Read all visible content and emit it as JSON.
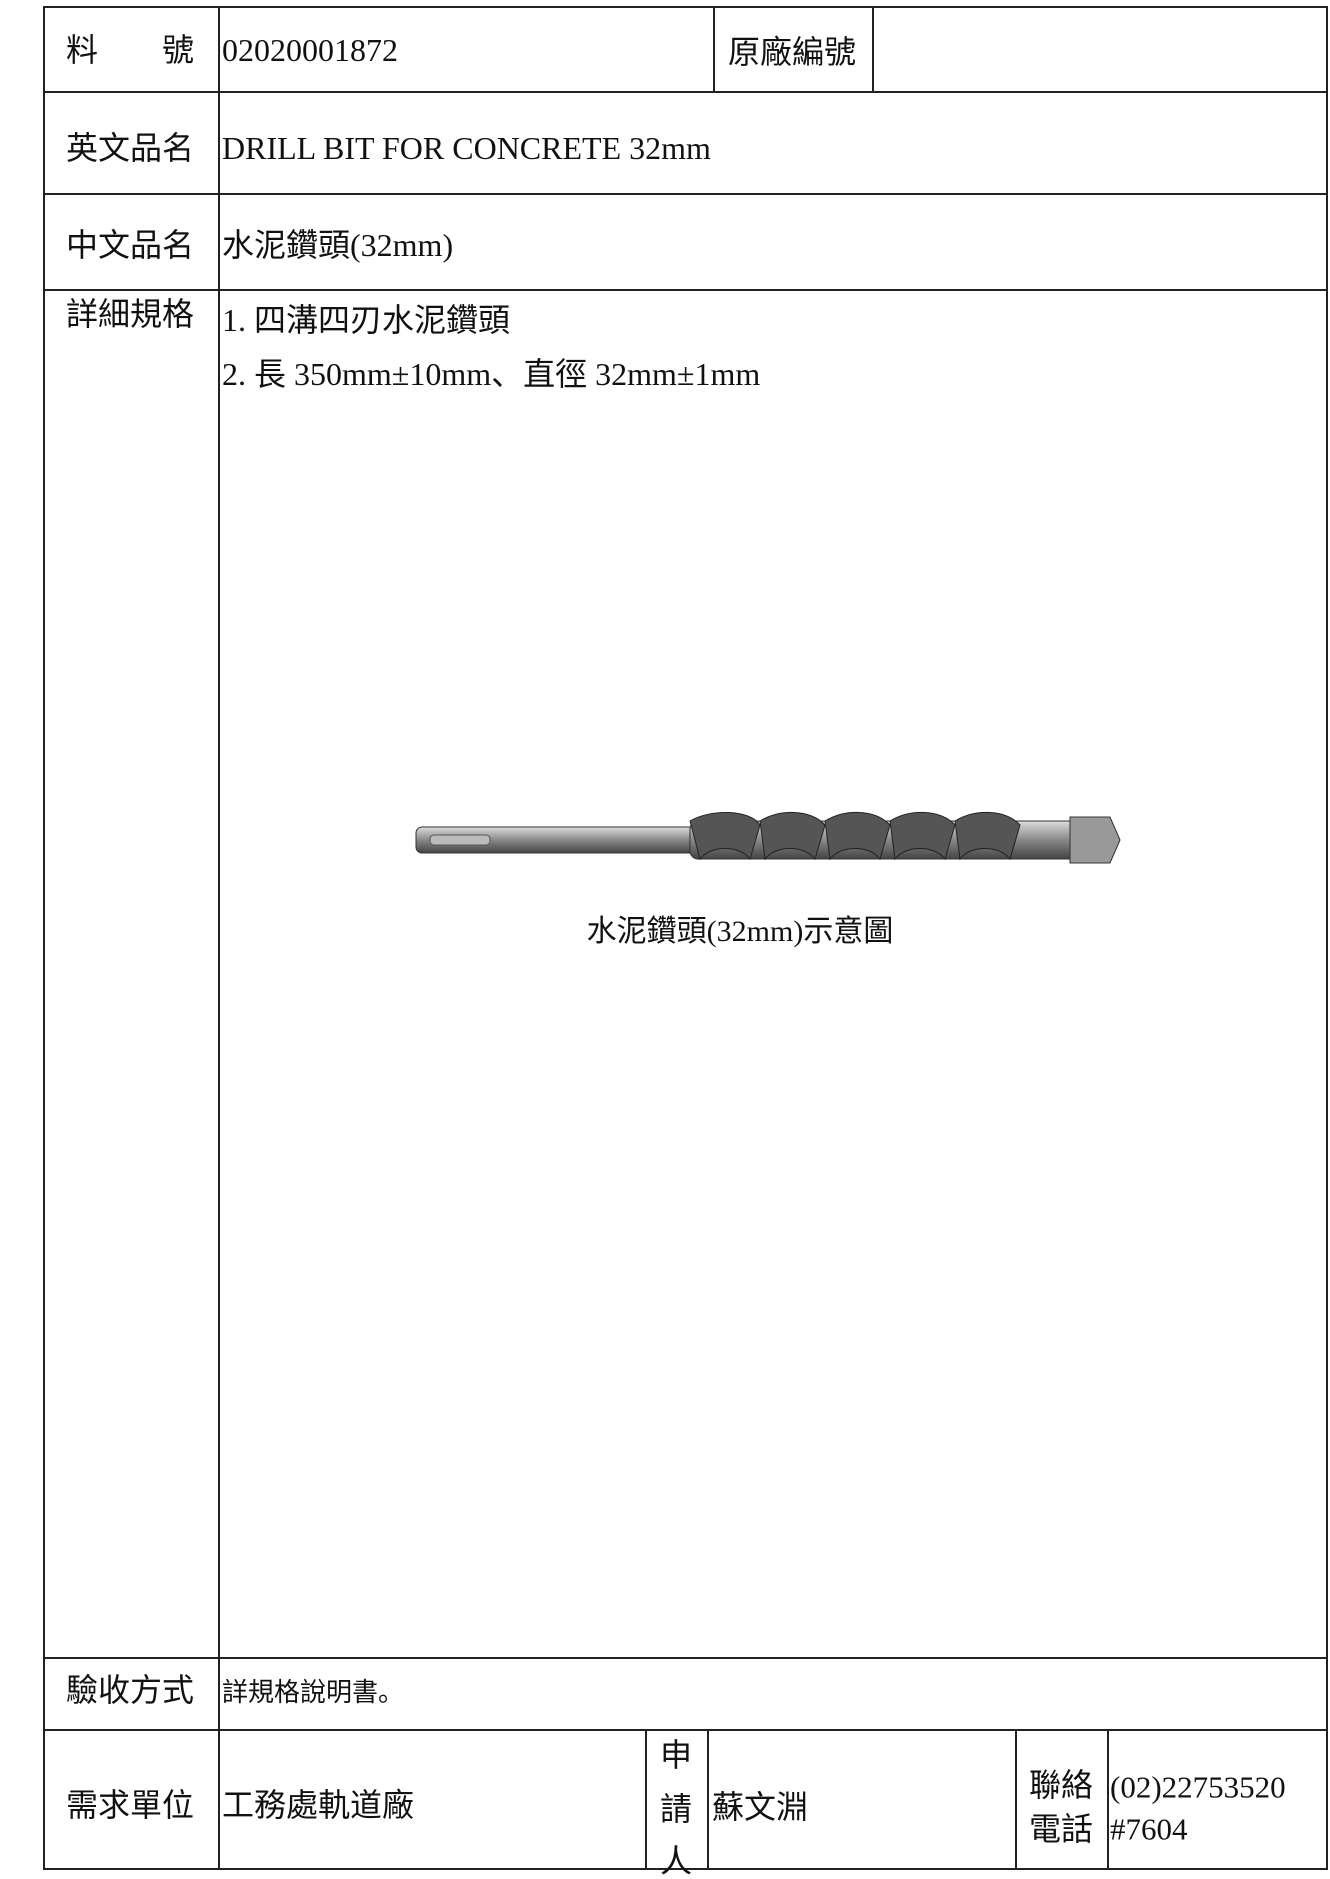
{
  "form": {
    "part_no": {
      "label": "料　　號",
      "value": "02020001872"
    },
    "original_no": {
      "label": "原廠編號"
    },
    "english_name": {
      "label": "英文品名",
      "value": "DRILL BIT FOR CONCRETE 32mm"
    },
    "chinese_name": {
      "label": "中文品名",
      "value": "水泥鑽頭(32mm)"
    },
    "specs": {
      "label": "詳細規格",
      "lines": [
        "1. 四溝四刃水泥鑽頭",
        "2. 長 350mm±10mm、直徑 32mm±1mm"
      ],
      "figure_caption": "水泥鑽頭(32mm)示意圖"
    },
    "acceptance": {
      "label": "驗收方式",
      "value": "詳規格說明書。"
    },
    "requesting_unit": {
      "label": "需求單位",
      "value": "工務處軌道廠"
    },
    "applicant": {
      "label": [
        "申",
        "請",
        "人"
      ],
      "value": "蘇文淵"
    },
    "contact": {
      "label": [
        "聯絡",
        "電話"
      ],
      "value": [
        "(02)22753520",
        "#7604"
      ]
    }
  }
}
